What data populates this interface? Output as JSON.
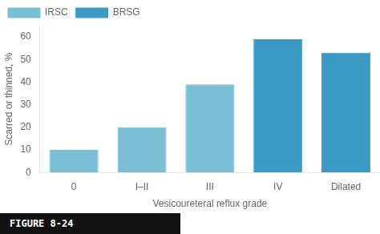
{
  "chart_data": {
    "type": "bar",
    "categories": [
      "0",
      "I–II",
      "III",
      "IV",
      "Dilated"
    ],
    "series": [
      {
        "name": "IRSC",
        "color": "#7BBFD6",
        "values": [
          10,
          20,
          39,
          null,
          null
        ]
      },
      {
        "name": "BRSG",
        "color": "#3B9AC4",
        "values": [
          null,
          null,
          null,
          59,
          53
        ]
      }
    ],
    "xlabel": "Vesicoureteral reflux grade",
    "ylabel": "Scarred or thinned, %",
    "ylim": [
      0,
      65
    ],
    "yticks": [
      0,
      10,
      20,
      30,
      40,
      50,
      60
    ],
    "grid": false,
    "legend": "upper left",
    "annotations": [
      "FIGURE 8-24"
    ]
  }
}
